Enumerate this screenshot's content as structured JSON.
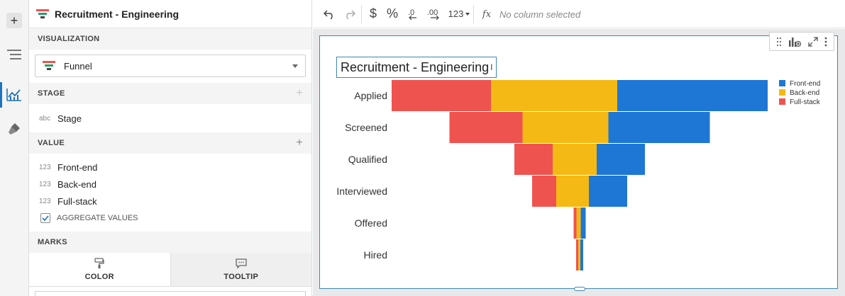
{
  "panel": {
    "title": "Recruitment - Engineering",
    "visualization_label": "VISUALIZATION",
    "viz_type": "Funnel",
    "stage_label": "STAGE",
    "stage_field": {
      "type": "abc",
      "name": "Stage"
    },
    "value_label": "VALUE",
    "value_fields": [
      {
        "type": "123",
        "name": "Front-end"
      },
      {
        "type": "123",
        "name": "Back-end"
      },
      {
        "type": "123",
        "name": "Full-stack"
      }
    ],
    "aggregate_label": "AGGREGATE VALUES",
    "aggregate_checked": true,
    "marks_label": "MARKS",
    "mark_tabs": [
      "COLOR",
      "TOOLTIP"
    ]
  },
  "toolbar": {
    "number_format": "123",
    "formula_placeholder": "No column selected",
    "fx": "fx"
  },
  "colors": {
    "front_end": "#1e77d4",
    "back_end": "#f5b915",
    "full_stack": "#ef5350",
    "accent": "#1e73be"
  },
  "chart_data": {
    "type": "funnel",
    "title": "Recruitment - Engineering",
    "categories": [
      "Applied",
      "Screened",
      "Qualified",
      "Interviewed",
      "Offered",
      "Hired"
    ],
    "series": [
      {
        "name": "Full-stack",
        "values": [
          140,
          103,
          54,
          34,
          4,
          3
        ]
      },
      {
        "name": "Back-end",
        "values": [
          178,
          121,
          62,
          46,
          6,
          3
        ]
      },
      {
        "name": "Front-end",
        "values": [
          212,
          143,
          68,
          54,
          7,
          4
        ]
      }
    ],
    "legend": {
      "position": "top-right",
      "entries": [
        "Front-end",
        "Back-end",
        "Full-stack"
      ]
    }
  }
}
